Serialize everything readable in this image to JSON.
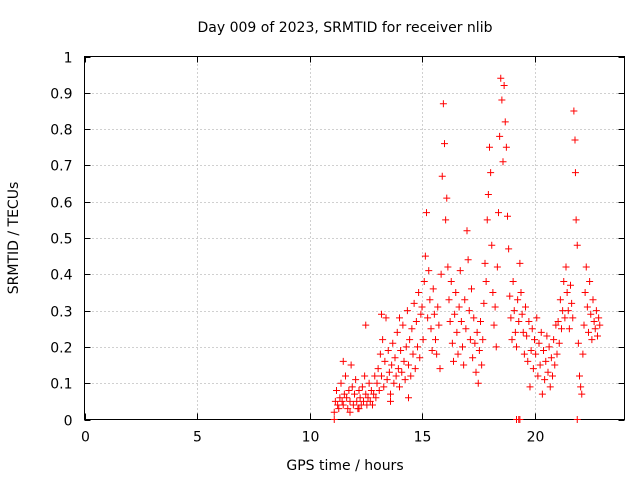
{
  "chart_data": {
    "type": "scatter",
    "title": "Day 009 of 2023, SRMTID for receiver nlib",
    "xlabel": "GPS time / hours",
    "ylabel": "SRMTID / TECUs",
    "xlim": [
      0,
      24
    ],
    "ylim": [
      0,
      1
    ],
    "x_ticks": [
      "0",
      "5",
      "10",
      "15",
      "20"
    ],
    "x_tick_values": [
      0,
      5,
      10,
      15,
      20
    ],
    "y_ticks": [
      "0",
      "0.1",
      "0.2",
      "0.3",
      "0.4",
      "0.5",
      "0.6",
      "0.7",
      "0.8",
      "0.9",
      "1"
    ],
    "y_tick_values": [
      0,
      0.1,
      0.2,
      0.3,
      0.4,
      0.5,
      0.6,
      0.7,
      0.8,
      0.9,
      1
    ],
    "grid": true,
    "marker": "+",
    "color": "#ff0000",
    "series": [
      {
        "name": "SRMTID",
        "points": [
          [
            11.1,
            0.02
          ],
          [
            11.15,
            0.05
          ],
          [
            11.2,
            0.08
          ],
          [
            11.25,
            0.04
          ],
          [
            11.3,
            0.03
          ],
          [
            11.35,
            0.06
          ],
          [
            11.4,
            0.1
          ],
          [
            11.45,
            0.05
          ],
          [
            11.5,
            0.04
          ],
          [
            11.55,
            0.07
          ],
          [
            11.6,
            0.12
          ],
          [
            11.65,
            0.06
          ],
          [
            11.7,
            0.03
          ],
          [
            11.75,
            0.08
          ],
          [
            11.8,
            0.05
          ],
          [
            11.85,
            0.15
          ],
          [
            11.9,
            0.09
          ],
          [
            11.95,
            0.04
          ],
          [
            12.0,
            0.07
          ],
          [
            12.05,
            0.11
          ],
          [
            12.1,
            0.05
          ],
          [
            12.15,
            0.03
          ],
          [
            12.2,
            0.08
          ],
          [
            12.25,
            0.06
          ],
          [
            12.3,
            0.04
          ],
          [
            12.35,
            0.09
          ],
          [
            12.4,
            0.05
          ],
          [
            12.45,
            0.12
          ],
          [
            12.5,
            0.07
          ],
          [
            12.55,
            0.04
          ],
          [
            12.6,
            0.06
          ],
          [
            12.65,
            0.1
          ],
          [
            12.7,
            0.05
          ],
          [
            12.75,
            0.08
          ],
          [
            12.8,
            0.04
          ],
          [
            12.85,
            0.07
          ],
          [
            12.9,
            0.12
          ],
          [
            12.95,
            0.06
          ],
          [
            12.5,
            0.26
          ],
          [
            11.5,
            0.16
          ],
          [
            11.8,
            0.02
          ],
          [
            12.2,
            0.03
          ],
          [
            13.0,
            0.1
          ],
          [
            13.05,
            0.14
          ],
          [
            13.1,
            0.08
          ],
          [
            13.15,
            0.18
          ],
          [
            13.2,
            0.12
          ],
          [
            13.25,
            0.22
          ],
          [
            13.3,
            0.09
          ],
          [
            13.35,
            0.16
          ],
          [
            13.4,
            0.28
          ],
          [
            13.45,
            0.11
          ],
          [
            13.5,
            0.19
          ],
          [
            13.55,
            0.13
          ],
          [
            13.6,
            0.07
          ],
          [
            13.65,
            0.15
          ],
          [
            13.7,
            0.21
          ],
          [
            13.75,
            0.1
          ],
          [
            13.8,
            0.17
          ],
          [
            13.85,
            0.12
          ],
          [
            13.9,
            0.24
          ],
          [
            13.95,
            0.14
          ],
          [
            14.0,
            0.09
          ],
          [
            14.05,
            0.19
          ],
          [
            14.1,
            0.13
          ],
          [
            14.15,
            0.26
          ],
          [
            14.2,
            0.16
          ],
          [
            14.25,
            0.11
          ],
          [
            14.3,
            0.2
          ],
          [
            14.35,
            0.3
          ],
          [
            14.4,
            0.15
          ],
          [
            14.45,
            0.22
          ],
          [
            14.5,
            0.12
          ],
          [
            14.55,
            0.25
          ],
          [
            14.6,
            0.18
          ],
          [
            14.65,
            0.32
          ],
          [
            14.7,
            0.14
          ],
          [
            14.75,
            0.27
          ],
          [
            14.8,
            0.2
          ],
          [
            14.85,
            0.35
          ],
          [
            14.9,
            0.17
          ],
          [
            14.95,
            0.29
          ],
          [
            13.2,
            0.29
          ],
          [
            13.6,
            0.05
          ],
          [
            14.0,
            0.28
          ],
          [
            14.4,
            0.06
          ],
          [
            15.0,
            0.31
          ],
          [
            15.05,
            0.22
          ],
          [
            15.1,
            0.38
          ],
          [
            15.15,
            0.45
          ],
          [
            15.2,
            0.57
          ],
          [
            15.25,
            0.28
          ],
          [
            15.3,
            0.41
          ],
          [
            15.35,
            0.33
          ],
          [
            15.4,
            0.25
          ],
          [
            15.45,
            0.19
          ],
          [
            15.5,
            0.36
          ],
          [
            15.55,
            0.29
          ],
          [
            15.6,
            0.22
          ],
          [
            15.65,
            0.18
          ],
          [
            15.7,
            0.31
          ],
          [
            15.75,
            0.26
          ],
          [
            15.8,
            0.14
          ],
          [
            15.85,
            0.4
          ],
          [
            15.9,
            0.67
          ],
          [
            15.95,
            0.87
          ],
          [
            16.0,
            0.76
          ],
          [
            16.05,
            0.55
          ],
          [
            16.1,
            0.61
          ],
          [
            16.15,
            0.42
          ],
          [
            16.2,
            0.33
          ],
          [
            16.25,
            0.27
          ],
          [
            16.3,
            0.38
          ],
          [
            16.35,
            0.21
          ],
          [
            16.4,
            0.16
          ],
          [
            16.45,
            0.29
          ],
          [
            16.5,
            0.35
          ],
          [
            16.55,
            0.24
          ],
          [
            16.6,
            0.18
          ],
          [
            16.65,
            0.31
          ],
          [
            16.7,
            0.41
          ],
          [
            16.75,
            0.27
          ],
          [
            16.8,
            0.2
          ],
          [
            16.85,
            0.15
          ],
          [
            16.9,
            0.33
          ],
          [
            16.95,
            0.25
          ],
          [
            17.0,
            0.52
          ],
          [
            17.05,
            0.44
          ],
          [
            17.1,
            0.3
          ],
          [
            17.15,
            0.22
          ],
          [
            17.2,
            0.36
          ],
          [
            17.25,
            0.17
          ],
          [
            17.3,
            0.28
          ],
          [
            17.35,
            0.21
          ],
          [
            17.4,
            0.13
          ],
          [
            17.45,
            0.24
          ],
          [
            17.5,
            0.1
          ],
          [
            17.55,
            0.19
          ],
          [
            17.6,
            0.27
          ],
          [
            17.65,
            0.15
          ],
          [
            17.7,
            0.22
          ],
          [
            17.75,
            0.32
          ],
          [
            17.8,
            0.43
          ],
          [
            17.85,
            0.38
          ],
          [
            17.9,
            0.55
          ],
          [
            17.95,
            0.62
          ],
          [
            18.0,
            0.75
          ],
          [
            18.05,
            0.68
          ],
          [
            18.1,
            0.48
          ],
          [
            18.15,
            0.35
          ],
          [
            18.2,
            0.26
          ],
          [
            18.25,
            0.31
          ],
          [
            18.3,
            0.2
          ],
          [
            18.35,
            0.42
          ],
          [
            18.4,
            0.57
          ],
          [
            18.45,
            0.78
          ],
          [
            18.5,
            0.94
          ],
          [
            18.55,
            0.88
          ],
          [
            18.6,
            0.71
          ],
          [
            18.65,
            0.92
          ],
          [
            18.7,
            0.82
          ],
          [
            18.75,
            0.75
          ],
          [
            18.8,
            0.56
          ],
          [
            18.85,
            0.47
          ],
          [
            18.9,
            0.34
          ],
          [
            18.95,
            0.28
          ],
          [
            19.0,
            0.22
          ],
          [
            19.05,
            0.38
          ],
          [
            19.1,
            0.3
          ],
          [
            19.15,
            0.24
          ],
          [
            19.2,
            0.2
          ],
          [
            19.25,
            0.33
          ],
          [
            19.3,
            0.27
          ],
          [
            19.35,
            0.43
          ],
          [
            19.4,
            0.35
          ],
          [
            19.45,
            0.29
          ],
          [
            19.5,
            0.24
          ],
          [
            19.55,
            0.18
          ],
          [
            19.6,
            0.31
          ],
          [
            19.65,
            0.23
          ],
          [
            19.7,
            0.16
          ],
          [
            19.75,
            0.27
          ],
          [
            19.8,
            0.09
          ],
          [
            19.85,
            0.19
          ],
          [
            19.9,
            0.25
          ],
          [
            19.95,
            0.14
          ],
          [
            20.0,
            0.22
          ],
          [
            20.05,
            0.18
          ],
          [
            20.1,
            0.28
          ],
          [
            20.15,
            0.12
          ],
          [
            20.2,
            0.21
          ],
          [
            20.25,
            0.15
          ],
          [
            20.3,
            0.24
          ],
          [
            20.35,
            0.07
          ],
          [
            20.4,
            0.19
          ],
          [
            20.45,
            0.11
          ],
          [
            20.5,
            0.16
          ],
          [
            20.55,
            0.23
          ],
          [
            20.6,
            0.13
          ],
          [
            20.65,
            0.2
          ],
          [
            20.7,
            0.09
          ],
          [
            20.75,
            0.17
          ],
          [
            20.8,
            0.12
          ],
          [
            20.85,
            0.22
          ],
          [
            20.9,
            0.15
          ],
          [
            20.95,
            0.26
          ],
          [
            21.0,
            0.18
          ],
          [
            21.05,
            0.27
          ],
          [
            21.1,
            0.21
          ],
          [
            21.15,
            0.33
          ],
          [
            21.2,
            0.25
          ],
          [
            21.25,
            0.3
          ],
          [
            21.3,
            0.38
          ],
          [
            21.35,
            0.28
          ],
          [
            21.4,
            0.42
          ],
          [
            21.45,
            0.35
          ],
          [
            21.5,
            0.3
          ],
          [
            21.55,
            0.25
          ],
          [
            21.6,
            0.37
          ],
          [
            21.65,
            0.32
          ],
          [
            21.7,
            0.28
          ],
          [
            21.75,
            0.85
          ],
          [
            21.8,
            0.77
          ],
          [
            21.82,
            0.68
          ],
          [
            21.85,
            0.55
          ],
          [
            21.9,
            0.48
          ],
          [
            21.95,
            0.21
          ],
          [
            22.0,
            0.12
          ],
          [
            22.05,
            0.09
          ],
          [
            22.1,
            0.07
          ],
          [
            22.15,
            0.18
          ],
          [
            22.2,
            0.26
          ],
          [
            22.25,
            0.35
          ],
          [
            22.3,
            0.42
          ],
          [
            22.35,
            0.31
          ],
          [
            22.4,
            0.24
          ],
          [
            22.45,
            0.38
          ],
          [
            22.5,
            0.29
          ],
          [
            22.55,
            0.22
          ],
          [
            22.6,
            0.33
          ],
          [
            22.65,
            0.27
          ],
          [
            22.7,
            0.25
          ],
          [
            22.75,
            0.3
          ],
          [
            22.8,
            0.23
          ],
          [
            22.85,
            0.28
          ],
          [
            22.9,
            0.26
          ],
          [
            11.1,
            0.0
          ],
          [
            19.2,
            0.0
          ],
          [
            19.3,
            0.0
          ],
          [
            19.35,
            0.0
          ],
          [
            21.9,
            0.0
          ]
        ]
      }
    ]
  }
}
